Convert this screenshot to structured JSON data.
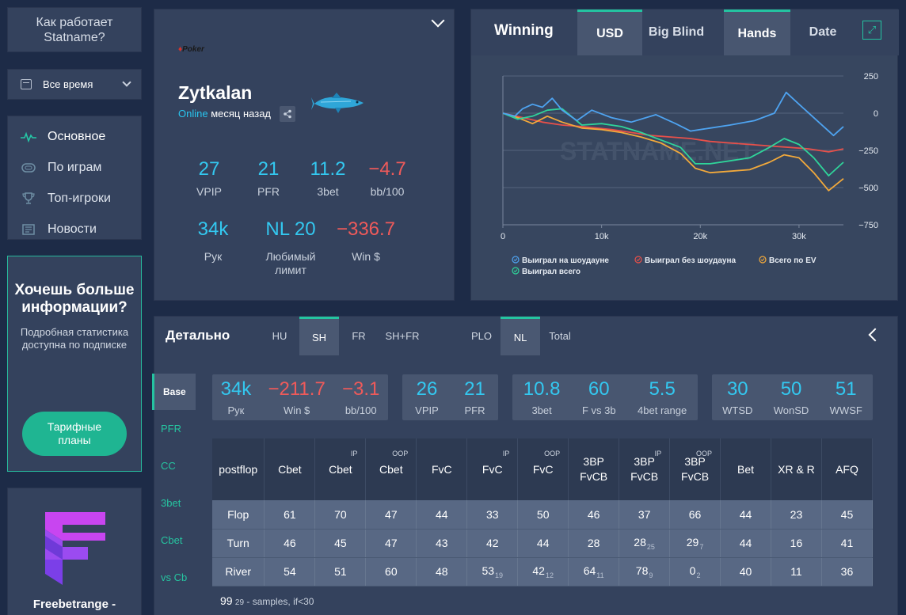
{
  "sidebar": {
    "how_it_works": "Как работает Statname?",
    "period": "Все время",
    "nav": [
      {
        "label": "Основное",
        "icon": "pulse-icon"
      },
      {
        "label": "По играм",
        "icon": "table-icon"
      },
      {
        "label": "Топ-игроки",
        "icon": "trophy-icon"
      },
      {
        "label": "Новости",
        "icon": "news-icon"
      }
    ],
    "promo": {
      "title": "Хочешь больше информации?",
      "text": "Подробная статистика доступна по подписке",
      "button": "Тарифные планы"
    },
    "freebet": {
      "name": "Freebetrange -"
    }
  },
  "profile": {
    "room_logo": "Poker",
    "nickname": "Zytkalan",
    "status_online": "Online",
    "status_time": "месяц назад",
    "stats": [
      {
        "value": "27",
        "label": "VPIP",
        "neg": false
      },
      {
        "value": "21",
        "label": "PFR",
        "neg": false
      },
      {
        "value": "11.2",
        "label": "3bet",
        "neg": false
      },
      {
        "value": "−4.7",
        "label": "bb/100",
        "neg": true
      },
      {
        "value": "34k",
        "label": "Рук",
        "neg": false
      },
      {
        "value": "NL 20",
        "label": "Любимый лимит",
        "neg": false
      },
      {
        "value": "−336.7",
        "label": "Win $",
        "neg": true
      }
    ]
  },
  "winning": {
    "title": "Winning",
    "tabs": [
      {
        "label": "USD",
        "selected": true
      },
      {
        "label": "Big Blind",
        "selected": false
      },
      {
        "label": "Hands",
        "selected": true
      },
      {
        "label": "Date",
        "selected": false
      }
    ],
    "watermark": "STATNAME.NET",
    "legend": [
      {
        "label": "Выиграл на шоудауне",
        "color": "#4ea3f0"
      },
      {
        "label": "Выиграл без шоудауна",
        "color": "#e8504a"
      },
      {
        "label": "Всего по EV",
        "color": "#f2a93b"
      },
      {
        "label": "Выиграл всего",
        "color": "#2fd49a"
      }
    ]
  },
  "chart_data": {
    "type": "line",
    "xlim": [
      0,
      34500
    ],
    "ylim": [
      -750,
      250
    ],
    "x_ticks": [
      0,
      10000,
      20000,
      30000
    ],
    "x_tick_labels": [
      "0",
      "10k",
      "20k",
      "30k"
    ],
    "y_ticks": [
      250,
      0,
      -250,
      -500,
      -750
    ],
    "y_tick_labels": [
      "250",
      "0",
      "−250",
      "−500",
      "−750"
    ],
    "grid": true,
    "legend_position": "bottom",
    "series": [
      {
        "name": "Выиграл на шоудауне",
        "color": "#4ea3f0",
        "x": [
          0,
          1200,
          2000,
          3000,
          4000,
          5000,
          6000,
          7500,
          9000,
          11000,
          13000,
          15500,
          17500,
          19000,
          21000,
          23000,
          25500,
          27500,
          28700,
          30000,
          32000,
          33500,
          34500
        ],
        "y": [
          0,
          -20,
          30,
          60,
          40,
          100,
          20,
          -50,
          20,
          -30,
          -60,
          -10,
          -70,
          -120,
          -100,
          -80,
          -50,
          0,
          140,
          60,
          -60,
          -150,
          -90
        ]
      },
      {
        "name": "Выиграл без шоудауна",
        "color": "#e8504a",
        "x": [
          0,
          2000,
          4000,
          6000,
          8000,
          11000,
          13000,
          15000,
          17000,
          19000,
          21000,
          23000,
          25000,
          27000,
          29000,
          31000,
          33000,
          34500
        ],
        "y": [
          0,
          -30,
          -60,
          -80,
          -90,
          -110,
          -130,
          -150,
          -160,
          -170,
          -190,
          -200,
          -210,
          -220,
          -230,
          -240,
          -260,
          -240
        ]
      },
      {
        "name": "Всего по EV",
        "color": "#f2a93b",
        "x": [
          0,
          1500,
          3000,
          4500,
          6000,
          8000,
          10000,
          12000,
          14000,
          16000,
          18000,
          19500,
          21000,
          23000,
          25000,
          27000,
          28500,
          30000,
          31500,
          33000,
          34500
        ],
        "y": [
          0,
          -30,
          -70,
          -20,
          -60,
          -100,
          -110,
          -130,
          -160,
          -200,
          -270,
          -370,
          -400,
          -390,
          -380,
          -330,
          -280,
          -300,
          -400,
          -520,
          -440
        ]
      },
      {
        "name": "Выиграл всего",
        "color": "#2fd49a",
        "x": [
          0,
          1500,
          3000,
          4500,
          6000,
          8000,
          10000,
          12000,
          14000,
          16000,
          18000,
          19500,
          21000,
          23000,
          25000,
          27000,
          28500,
          30000,
          31500,
          33000,
          34500
        ],
        "y": [
          0,
          -40,
          -20,
          20,
          30,
          -80,
          -70,
          -90,
          -130,
          -180,
          -230,
          -340,
          -340,
          -320,
          -300,
          -230,
          -170,
          -210,
          -300,
          -420,
          -330
        ]
      }
    ]
  },
  "details": {
    "title": "Детально",
    "tabs": [
      {
        "label": "HU",
        "selected": false
      },
      {
        "label": "SH",
        "selected": true
      },
      {
        "label": "FR",
        "selected": false
      },
      {
        "label": "SH+FR",
        "selected": false
      },
      {
        "label": "PLO",
        "selected": false
      },
      {
        "label": "NL",
        "selected": true
      },
      {
        "label": "Total",
        "selected": false
      }
    ],
    "side_tabs": [
      {
        "label": "Base",
        "selected": true
      },
      {
        "label": "PFR",
        "selected": false
      },
      {
        "label": "CC",
        "selected": false
      },
      {
        "label": "3bet",
        "selected": false
      },
      {
        "label": "Cbet",
        "selected": false
      },
      {
        "label": "vs Cb",
        "selected": false
      }
    ],
    "summary": [
      [
        {
          "value": "34k",
          "label": "Рук",
          "neg": false
        },
        {
          "value": "−211.7",
          "label": "Win $",
          "neg": true
        },
        {
          "value": "−3.1",
          "label": "bb/100",
          "neg": true
        }
      ],
      [
        {
          "value": "26",
          "label": "VPIP",
          "neg": false
        },
        {
          "value": "21",
          "label": "PFR",
          "neg": false
        }
      ],
      [
        {
          "value": "10.8",
          "label": "3bet",
          "neg": false
        },
        {
          "value": "60",
          "label": "F vs 3b",
          "neg": false
        },
        {
          "value": "5.5",
          "label": "4bet range",
          "neg": false
        }
      ],
      [
        {
          "value": "30",
          "label": "WTSD",
          "neg": false
        },
        {
          "value": "50",
          "label": "WonSD",
          "neg": false
        },
        {
          "value": "51",
          "label": "WWSF",
          "neg": false
        }
      ]
    ],
    "table": {
      "headers": [
        {
          "label": "postflop",
          "sup": ""
        },
        {
          "label": "Cbet",
          "sup": ""
        },
        {
          "label": "Cbet",
          "sup": "IP"
        },
        {
          "label": "Cbet",
          "sup": "OOP"
        },
        {
          "label": "FvC",
          "sup": ""
        },
        {
          "label": "FvC",
          "sup": "IP"
        },
        {
          "label": "FvC",
          "sup": "OOP"
        },
        {
          "label": "3BP FvCB",
          "sup": ""
        },
        {
          "label": "3BP FvCB",
          "sup": "IP"
        },
        {
          "label": "3BP FvCB",
          "sup": "OOP"
        },
        {
          "label": "Bet",
          "sup": ""
        },
        {
          "label": "XR & R",
          "sup": ""
        },
        {
          "label": "AFQ",
          "sup": ""
        }
      ],
      "rows": [
        {
          "name": "Flop",
          "cells": [
            {
              "v": "61"
            },
            {
              "v": "70"
            },
            {
              "v": "47"
            },
            {
              "v": "44"
            },
            {
              "v": "33"
            },
            {
              "v": "50"
            },
            {
              "v": "46"
            },
            {
              "v": "37"
            },
            {
              "v": "66"
            },
            {
              "v": "44"
            },
            {
              "v": "23"
            },
            {
              "v": "45"
            }
          ]
        },
        {
          "name": "Turn",
          "cells": [
            {
              "v": "46"
            },
            {
              "v": "45"
            },
            {
              "v": "47"
            },
            {
              "v": "43"
            },
            {
              "v": "42"
            },
            {
              "v": "44"
            },
            {
              "v": "28"
            },
            {
              "v": "28",
              "s": "25"
            },
            {
              "v": "29",
              "s": "7"
            },
            {
              "v": "44"
            },
            {
              "v": "16"
            },
            {
              "v": "41"
            }
          ]
        },
        {
          "name": "River",
          "cells": [
            {
              "v": "54"
            },
            {
              "v": "51"
            },
            {
              "v": "60"
            },
            {
              "v": "48"
            },
            {
              "v": "53",
              "s": "19"
            },
            {
              "v": "42",
              "s": "12"
            },
            {
              "v": "64",
              "s": "11"
            },
            {
              "v": "78",
              "s": "9"
            },
            {
              "v": "0",
              "s": "2"
            },
            {
              "v": "40"
            },
            {
              "v": "11"
            },
            {
              "v": "36"
            }
          ]
        }
      ]
    },
    "note_sample_value": "99",
    "note_sample_count": "29",
    "note_text": " - samples, if<30"
  }
}
